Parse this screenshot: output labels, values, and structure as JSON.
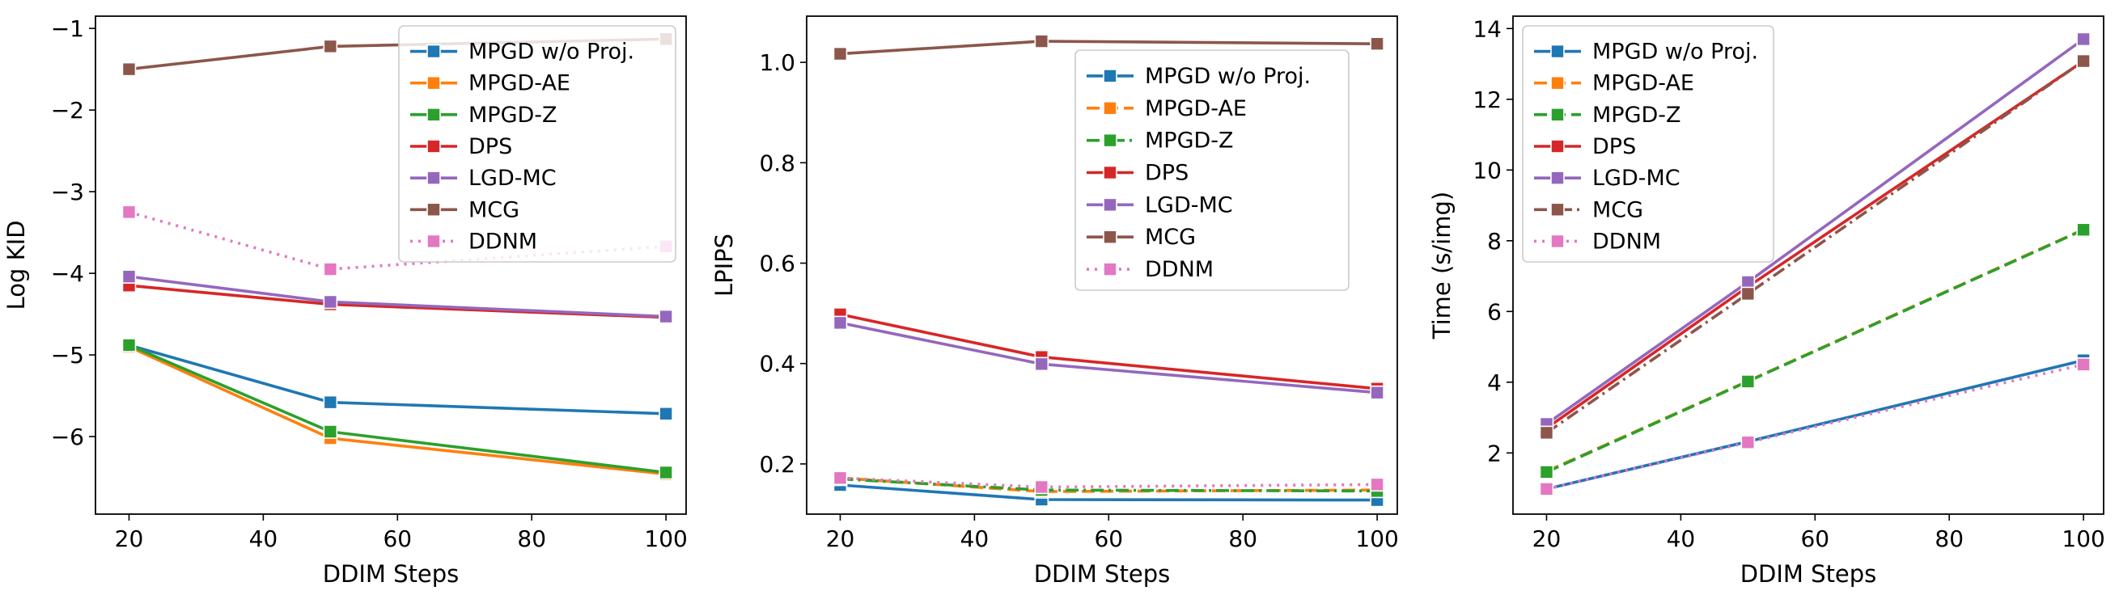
{
  "figure": {
    "xlabel": "DDIM Steps",
    "colors": {
      "MPGD w/o Proj.": "#1f77b4",
      "MPGD-AE": "#ff7f0e",
      "MPGD-Z": "#2ca02c",
      "DPS": "#d62728",
      "LGD-MC": "#9467bd",
      "MCG": "#8c564b",
      "DDNM": "#e377c2"
    }
  },
  "chart_data": [
    {
      "type": "line",
      "title": "",
      "xlabel": "DDIM Steps",
      "ylabel": "Log KID",
      "x": [
        20,
        50,
        100
      ],
      "xlim": [
        15,
        103
      ],
      "ylim": [
        -6.95,
        -0.85
      ],
      "xticks": [
        20,
        40,
        60,
        80,
        100
      ],
      "yticks": [
        -6,
        -5,
        -4,
        -3,
        -2,
        -1
      ],
      "ytick_labels": [
        "−6",
        "−5",
        "−4",
        "−3",
        "−2",
        "−1"
      ],
      "legend_loc": "upper right",
      "series": [
        {
          "name": "MPGD w/o Proj.",
          "values": [
            -4.88,
            -5.58,
            -5.72
          ],
          "style": "solid"
        },
        {
          "name": "MPGD-AE",
          "values": [
            -4.9,
            -6.02,
            -6.46
          ],
          "style": "solid"
        },
        {
          "name": "MPGD-Z",
          "values": [
            -4.88,
            -5.94,
            -6.44
          ],
          "style": "solid"
        },
        {
          "name": "DPS",
          "values": [
            -4.15,
            -4.38,
            -4.54
          ],
          "style": "solid"
        },
        {
          "name": "LGD-MC",
          "values": [
            -4.04,
            -4.35,
            -4.53
          ],
          "style": "solid"
        },
        {
          "name": "MCG",
          "values": [
            -1.5,
            -1.22,
            -1.13
          ],
          "style": "solid"
        },
        {
          "name": "DDNM",
          "values": [
            -3.25,
            -3.95,
            -3.67
          ],
          "style": "dotted"
        }
      ]
    },
    {
      "type": "line",
      "title": "",
      "xlabel": "DDIM Steps",
      "ylabel": "LPIPS",
      "x": [
        20,
        50,
        100
      ],
      "xlim": [
        15,
        103
      ],
      "ylim": [
        0.1,
        1.092
      ],
      "xticks": [
        20,
        40,
        60,
        80,
        100
      ],
      "yticks": [
        0.2,
        0.4,
        0.6,
        0.8,
        1.0
      ],
      "ytick_labels": [
        "0.2",
        "0.4",
        "0.6",
        "0.8",
        "1.0"
      ],
      "legend_loc": "center right",
      "series": [
        {
          "name": "MPGD w/o Proj.",
          "values": [
            0.158,
            0.129,
            0.128
          ],
          "style": "solid"
        },
        {
          "name": "MPGD-AE",
          "values": [
            0.172,
            0.145,
            0.148
          ],
          "style": "dashed"
        },
        {
          "name": "MPGD-Z",
          "values": [
            0.17,
            0.148,
            0.146
          ],
          "style": "dashdot"
        },
        {
          "name": "DPS",
          "values": [
            0.498,
            0.413,
            0.35
          ],
          "style": "solid"
        },
        {
          "name": "LGD-MC",
          "values": [
            0.481,
            0.399,
            0.342
          ],
          "style": "solid"
        },
        {
          "name": "MCG",
          "values": [
            1.017,
            1.042,
            1.037
          ],
          "style": "solid"
        },
        {
          "name": "DDNM",
          "values": [
            0.172,
            0.154,
            0.159
          ],
          "style": "dotted"
        }
      ]
    },
    {
      "type": "line",
      "title": "",
      "xlabel": "DDIM Steps",
      "ylabel": "Time (s/img)",
      "x": [
        20,
        50,
        100
      ],
      "xlim": [
        15,
        103
      ],
      "ylim": [
        0.27,
        14.35
      ],
      "xticks": [
        20,
        40,
        60,
        80,
        100
      ],
      "yticks": [
        2,
        4,
        6,
        8,
        10,
        12,
        14
      ],
      "ytick_labels": [
        "2",
        "4",
        "6",
        "8",
        "10",
        "12",
        "14"
      ],
      "legend_loc": "upper left",
      "series": [
        {
          "name": "MPGD w/o Proj.",
          "values": [
            0.98,
            2.32,
            4.62
          ],
          "style": "solid"
        },
        {
          "name": "MPGD-AE",
          "values": [
            1.48,
            4.03,
            8.32
          ],
          "style": "dashed"
        },
        {
          "name": "MPGD-Z",
          "values": [
            1.46,
            4.02,
            8.31
          ],
          "style": "dashed"
        },
        {
          "name": "DPS",
          "values": [
            2.7,
            6.7,
            13.08
          ],
          "style": "solid"
        },
        {
          "name": "LGD-MC",
          "values": [
            2.82,
            6.83,
            13.7
          ],
          "style": "solid"
        },
        {
          "name": "MCG",
          "values": [
            2.57,
            6.5,
            13.08
          ],
          "style": "dashdot"
        },
        {
          "name": "DDNM",
          "values": [
            0.98,
            2.3,
            4.5
          ],
          "style": "dotted"
        }
      ]
    }
  ]
}
